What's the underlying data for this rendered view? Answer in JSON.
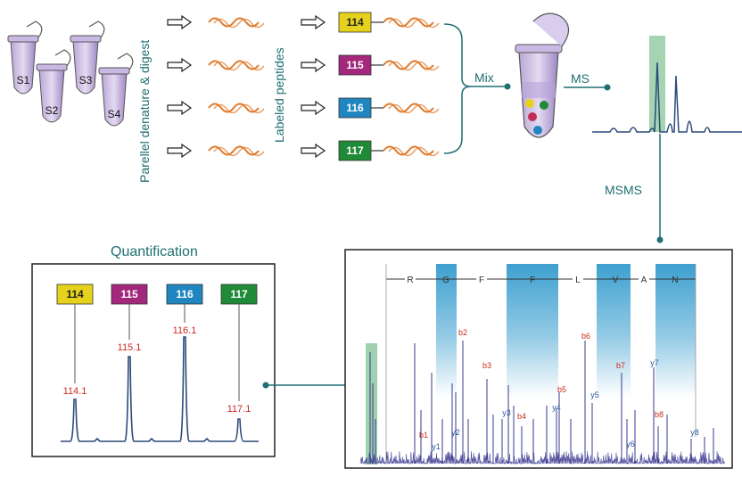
{
  "samples": [
    "S1",
    "S2",
    "S3",
    "S4"
  ],
  "step_digest": "Parellel denature & digest",
  "step_label": "Labeled peptides",
  "tags": [
    {
      "label": "114",
      "color": "#e6d21c",
      "text_color": "#222222"
    },
    {
      "label": "115",
      "color": "#a3277a",
      "text_color": "#ffffff"
    },
    {
      "label": "116",
      "color": "#1f86bf",
      "text_color": "#ffffff"
    },
    {
      "label": "117",
      "color": "#1f8a37",
      "text_color": "#ffffff"
    }
  ],
  "mix_label": "Mix",
  "ms_label": "MS",
  "msms_label": "MSMS",
  "quant_title": "Quantification",
  "quant_peaks": [
    "114.1",
    "115.1",
    "116.1",
    "117.1"
  ],
  "sequence": [
    "R",
    "G",
    "F",
    "F",
    "L",
    "V",
    "A",
    "N"
  ],
  "b_ions": [
    "b1",
    "b2",
    "b3",
    "b4",
    "b5",
    "b6",
    "b7",
    "b8"
  ],
  "y_ions": [
    "y1",
    "y2",
    "y3",
    "y4",
    "y5",
    "y6",
    "y7",
    "y8"
  ],
  "colors": {
    "teal": "#1f6e72",
    "purple": "#8a6fb3",
    "peak_line": "#2c4a7a",
    "highlight": "#8fc9a0",
    "ion_bar": "#3ea0d0"
  }
}
